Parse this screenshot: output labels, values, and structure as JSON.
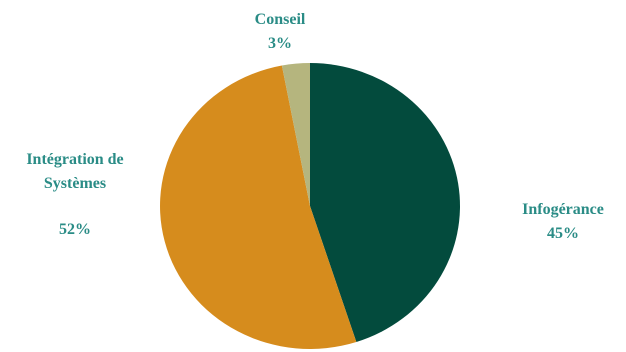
{
  "chart_data": {
    "type": "pie",
    "slices": [
      {
        "label_lines": [
          "Infogérance"
        ],
        "value": 45,
        "value_label": "45%",
        "color": "#034b3d"
      },
      {
        "label_lines": [
          "Intégration de",
          "Systèmes"
        ],
        "value": 52,
        "value_label": "52%",
        "color": "#d68c1d"
      },
      {
        "label_lines": [
          "Conseil"
        ],
        "value": 3,
        "value_label": "3%",
        "color": "#b5b57e"
      }
    ],
    "start_angle_deg": 0,
    "direction": "clockwise",
    "label_color": "#2a8c86",
    "title": ""
  }
}
